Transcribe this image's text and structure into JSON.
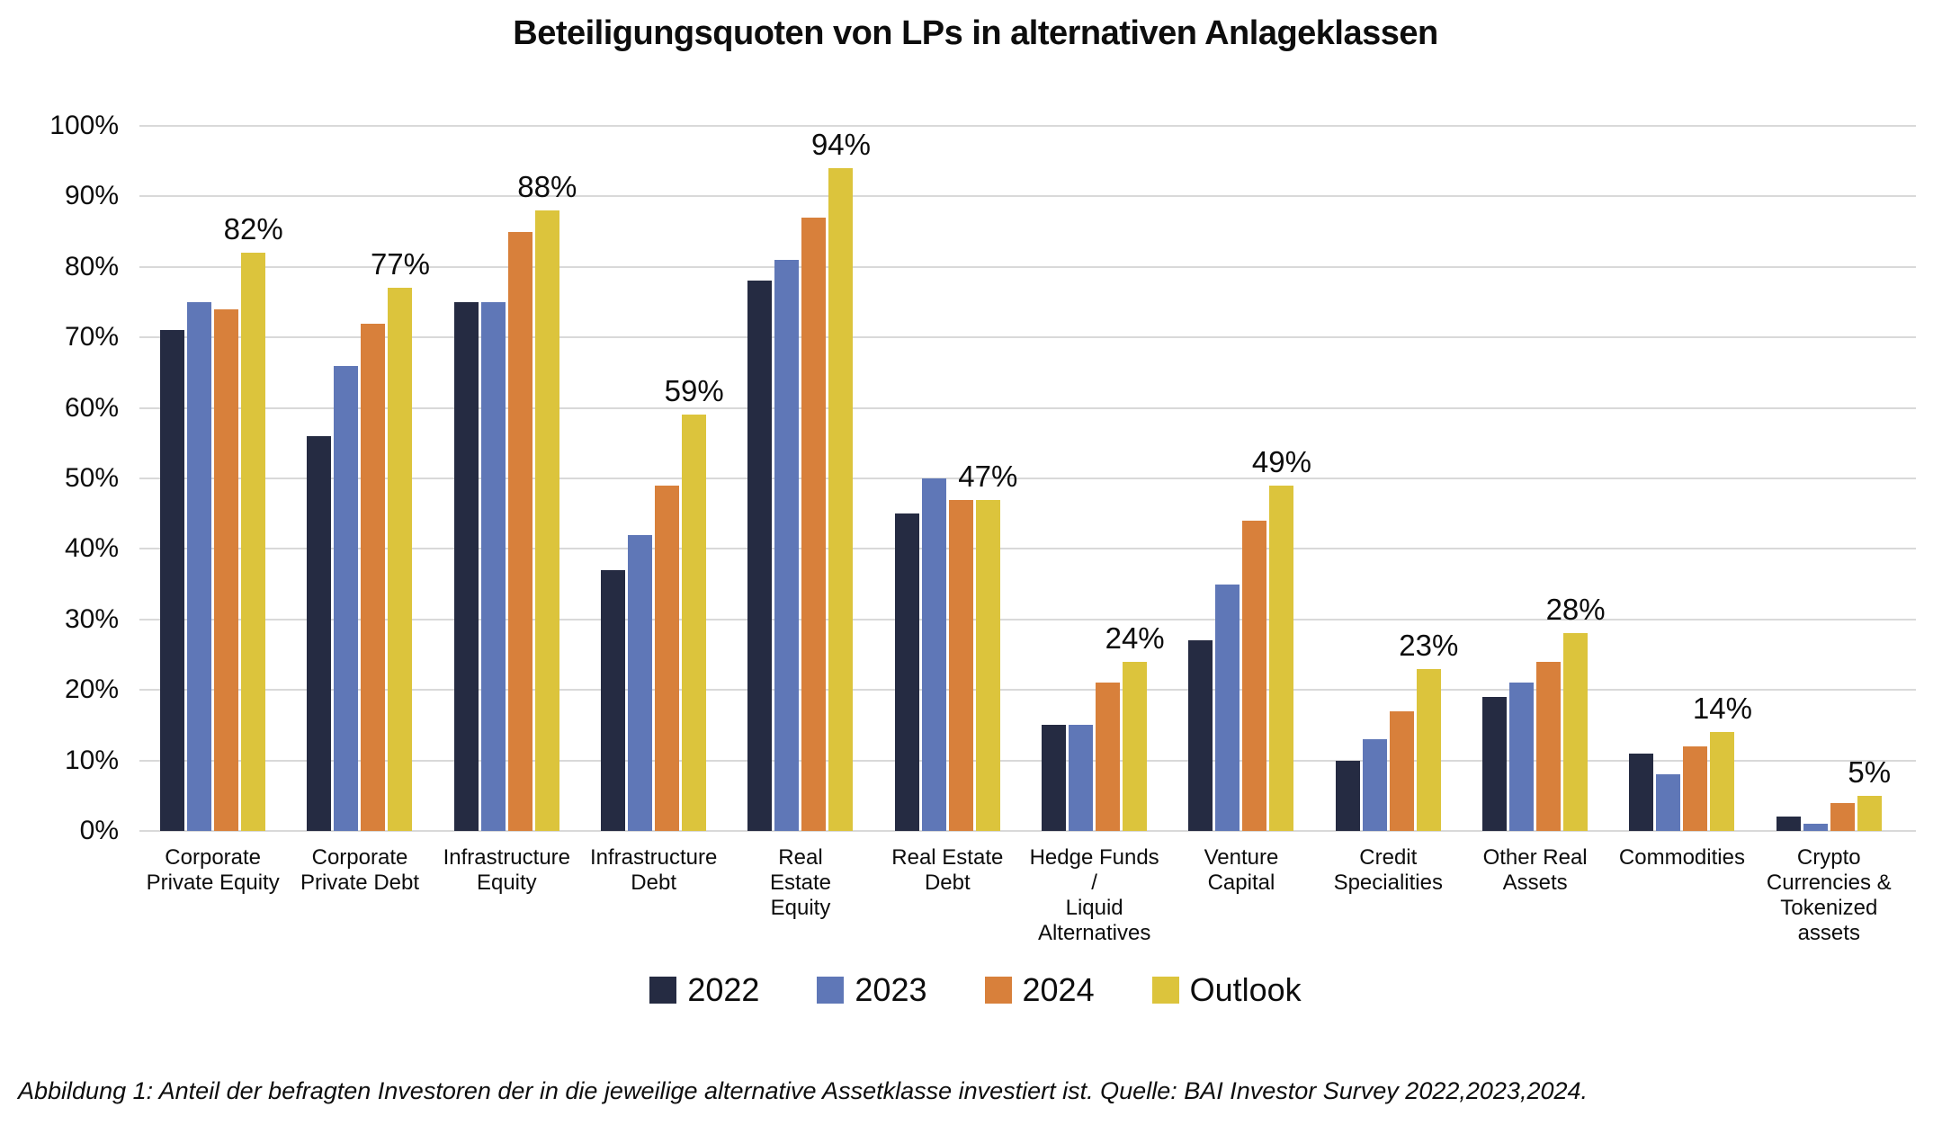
{
  "title": "Beteiligungsquoten von LPs in alternativen Anlageklassen",
  "caption": "Abbildung 1: Anteil der befragten Investoren der in die jeweilige alternative Assetklasse investiert ist. Quelle: BAI Investor Survey 2022,2023,2024.",
  "colors": {
    "series_2022": "#252b42",
    "series_2023": "#5f77b7",
    "series_2024": "#d8803b",
    "series_outlook": "#dcc43c",
    "gridline": "#d9d9d9",
    "text": "#0d0d0d"
  },
  "chart_data": {
    "type": "bar",
    "title": "Beteiligungsquoten von LPs in alternativen Anlageklassen",
    "xlabel": "",
    "ylabel": "",
    "ylim": [
      0,
      100
    ],
    "grid": true,
    "legend_position": "bottom",
    "y_tick_labels": [
      "100%",
      "90%",
      "80%",
      "70%",
      "60%",
      "50%",
      "40%",
      "30%",
      "20%",
      "10%",
      "0%"
    ],
    "categories": [
      "Corporate Private Equity",
      "Corporate Private Debt",
      "Infrastructure Equity",
      "Infrastructure Debt",
      "Real Estate Equity",
      "Real Estate Debt",
      "Hedge Funds / Liquid Alternatives",
      "Venture Capital",
      "Credit Specialities",
      "Other Real Assets",
      "Commodities",
      "Crypto Currencies & Tokenized assets"
    ],
    "category_lines": [
      [
        "Corporate",
        "Private Equity"
      ],
      [
        "Corporate",
        "Private Debt"
      ],
      [
        "Infrastructure",
        "Equity"
      ],
      [
        "Infrastructure",
        "Debt"
      ],
      [
        "Real",
        "Estate",
        "Equity"
      ],
      [
        "Real Estate",
        "Debt"
      ],
      [
        "Hedge Funds /",
        "Liquid",
        "Alternatives"
      ],
      [
        "Venture",
        "Capital"
      ],
      [
        "Credit",
        "Specialities"
      ],
      [
        "Other Real",
        "Assets"
      ],
      [
        "Commodities"
      ],
      [
        "Crypto",
        "Currencies &",
        "Tokenized assets"
      ]
    ],
    "series": [
      {
        "name": "2022",
        "color": "#252b42",
        "values": [
          71,
          56,
          75,
          37,
          78,
          45,
          15,
          27,
          10,
          19,
          11,
          2
        ]
      },
      {
        "name": "2023",
        "color": "#5f77b7",
        "values": [
          75,
          66,
          75,
          42,
          81,
          50,
          15,
          35,
          13,
          21,
          8,
          1
        ]
      },
      {
        "name": "2024",
        "color": "#d8803b",
        "values": [
          74,
          72,
          85,
          49,
          87,
          47,
          21,
          44,
          17,
          24,
          12,
          4
        ]
      },
      {
        "name": "Outlook",
        "color": "#dcc43c",
        "values": [
          82,
          77,
          88,
          59,
          94,
          47,
          24,
          49,
          23,
          28,
          14,
          5
        ]
      }
    ],
    "data_labels": [
      "82%",
      "77%",
      "88%",
      "59%",
      "94%",
      "47%",
      "24%",
      "49%",
      "23%",
      "28%",
      "14%",
      "5%"
    ],
    "data_label_series": "Outlook"
  }
}
